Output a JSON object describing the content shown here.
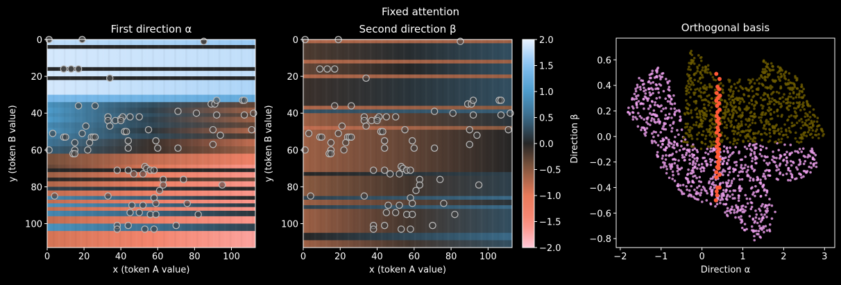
{
  "figure_title": "Fixed attention",
  "colors": {
    "background": "#000000",
    "pink_points": "#f4a4f4",
    "olive_points": "#6e5c00",
    "orange_points": "#ff5a36",
    "circle_edge": "#b8b8b8"
  },
  "colormap": {
    "stops": [
      [
        -2,
        "#ffc8d8"
      ],
      [
        -1.5,
        "#fa8a78"
      ],
      [
        -1,
        "#e87a5a"
      ],
      [
        -0.5,
        "#8a5a40"
      ],
      [
        0,
        "#262626"
      ],
      [
        0.5,
        "#3a6a88"
      ],
      [
        1,
        "#4d9ccc"
      ],
      [
        1.5,
        "#84c0f2"
      ],
      [
        2,
        "#e8f2ff"
      ]
    ],
    "range": [
      -2,
      2
    ],
    "ticks": [
      "2.0",
      "1.5",
      "1.0",
      "0.5",
      "0.0",
      "−0.5",
      "−1.0",
      "−1.5",
      "−2.0"
    ]
  },
  "chart_data": [
    {
      "type": "heatmap",
      "title": "First direction α",
      "xlabel": "x (token A value)",
      "ylabel": "y (token B value)",
      "xlim": [
        0,
        113
      ],
      "ylim": [
        113,
        0
      ],
      "xticks": [
        "0",
        "20",
        "40",
        "60",
        "80",
        "100"
      ],
      "yticks": [
        "0",
        "20",
        "40",
        "60",
        "80",
        "100"
      ],
      "bands": [
        [
          0,
          3,
          1.8,
          1.6
        ],
        [
          3,
          5,
          0,
          0
        ],
        [
          5,
          15,
          1.9,
          1.8
        ],
        [
          15,
          17,
          0,
          0
        ],
        [
          17,
          20,
          1.9,
          1.8
        ],
        [
          20,
          22,
          0,
          0
        ],
        [
          22,
          30,
          1.9,
          1.7
        ],
        [
          30,
          34,
          1.4,
          1.2
        ],
        [
          34,
          37,
          0.9,
          -0.3
        ],
        [
          37,
          40,
          1.0,
          -0.6
        ],
        [
          40,
          42,
          0.9,
          -0.3
        ],
        [
          42,
          45,
          1.0,
          -0.6
        ],
        [
          45,
          48,
          0.8,
          -0.3
        ],
        [
          48,
          51,
          0.9,
          -0.7
        ],
        [
          51,
          54,
          0.7,
          -0.2
        ],
        [
          54,
          58,
          0.6,
          -0.8
        ],
        [
          58,
          62,
          0.4,
          -0.6
        ],
        [
          62,
          68,
          -0.4,
          -1.2
        ],
        [
          68,
          70,
          -0.3,
          -1.6
        ],
        [
          70,
          72,
          0,
          0
        ],
        [
          72,
          75,
          -0.6,
          -1.6
        ],
        [
          75,
          77,
          0,
          -0.3
        ],
        [
          77,
          80,
          -0.7,
          -1.6
        ],
        [
          80,
          82,
          0.2,
          0
        ],
        [
          82,
          85,
          -0.8,
          -1.6
        ],
        [
          85,
          87,
          0.8,
          0
        ],
        [
          87,
          89,
          -0.8,
          -1.6
        ],
        [
          89,
          91,
          0.9,
          0.1
        ],
        [
          91,
          93,
          -0.8,
          -1.6
        ],
        [
          93,
          96,
          0.8,
          0.1
        ],
        [
          96,
          100,
          -0.8,
          -1.6
        ],
        [
          100,
          104,
          0.9,
          0.2
        ],
        [
          104,
          113,
          -0.9,
          -1.7
        ]
      ]
    },
    {
      "type": "heatmap",
      "title": "Second direction β",
      "xlabel": "x (token A value)",
      "ylabel": "y (token B value)",
      "xlim": [
        0,
        113
      ],
      "ylim": [
        113,
        0
      ],
      "xticks": [
        "0",
        "20",
        "40",
        "60",
        "80",
        "100"
      ],
      "yticks": [
        "0",
        "20",
        "40",
        "60",
        "80",
        "100"
      ],
      "bands": [
        [
          0,
          2,
          -0.7,
          -0.6
        ],
        [
          2,
          11,
          -0.2,
          0.3
        ],
        [
          11,
          13,
          -0.7,
          -0.6
        ],
        [
          13,
          19,
          -0.3,
          0.3
        ],
        [
          19,
          21,
          -0.7,
          -0.6
        ],
        [
          21,
          36,
          -0.1,
          0.3
        ],
        [
          36,
          38,
          -0.7,
          -0.5
        ],
        [
          38,
          40,
          0.3,
          0.4
        ],
        [
          40,
          47,
          -0.6,
          0.1
        ],
        [
          47,
          49,
          -0.8,
          -0.5
        ],
        [
          49,
          72,
          -0.6,
          0
        ],
        [
          72,
          74,
          0,
          0.2
        ],
        [
          74,
          85,
          -0.5,
          0.2
        ],
        [
          85,
          87,
          0.2,
          0.5
        ],
        [
          87,
          90,
          -0.6,
          0.1
        ],
        [
          90,
          92,
          0.2,
          0.5
        ],
        [
          92,
          105,
          -0.6,
          0.3
        ],
        [
          105,
          109,
          0,
          0.5
        ],
        [
          109,
          113,
          -0.6,
          0.3
        ]
      ]
    },
    {
      "type": "scatter",
      "title": "Orthogonal basis",
      "xlabel": "Direction α",
      "ylabel": "Direction β",
      "xlim": [
        -2.1,
        3.25
      ],
      "ylim": [
        -0.87,
        0.77
      ],
      "xticks": [
        -2,
        -1,
        0,
        1,
        2,
        3
      ],
      "xtick_labels": [
        "−2",
        "−1",
        "0",
        "1",
        "2",
        "3"
      ],
      "yticks": [
        0.6,
        0.4,
        0.2,
        0.0,
        -0.2,
        -0.4,
        -0.6,
        -0.8
      ],
      "ytick_labels": [
        "0.6",
        "0.4",
        "0.2",
        "0.0",
        "−0.2",
        "−0.4",
        "−0.6",
        "−0.8"
      ],
      "series": [
        {
          "name": "pink cloud",
          "color": "#f4a4f4",
          "count": 900,
          "region": [
            [
              -1.85,
              0.18
            ],
            [
              -1.6,
              0.45
            ],
            [
              -1.05,
              0.56
            ],
            [
              -0.6,
              0.35
            ],
            [
              -0.45,
              0.0
            ],
            [
              0.0,
              -0.1
            ],
            [
              1.0,
              -0.06
            ],
            [
              2.0,
              -0.05
            ],
            [
              2.8,
              -0.1
            ],
            [
              2.85,
              -0.25
            ],
            [
              2.3,
              -0.35
            ],
            [
              1.5,
              -0.35
            ],
            [
              1.8,
              -0.55
            ],
            [
              1.8,
              -0.72
            ],
            [
              1.3,
              -0.82
            ],
            [
              0.9,
              -0.7
            ],
            [
              0.3,
              -0.55
            ],
            [
              -0.5,
              -0.45
            ],
            [
              -1.0,
              -0.25
            ],
            [
              -1.4,
              0.0
            ]
          ]
        },
        {
          "name": "olive cloud",
          "color": "#6e5c00",
          "count": 900,
          "region": [
            [
              -0.45,
              0.2
            ],
            [
              -0.3,
              0.7
            ],
            [
              0.1,
              0.6
            ],
            [
              0.3,
              0.45
            ],
            [
              1.4,
              0.45
            ],
            [
              1.5,
              0.6
            ],
            [
              1.9,
              0.55
            ],
            [
              2.4,
              0.45
            ],
            [
              2.9,
              0.1
            ],
            [
              3.05,
              0.0
            ],
            [
              2.4,
              -0.05
            ],
            [
              1.0,
              -0.05
            ],
            [
              0.5,
              -0.08
            ],
            [
              -0.1,
              -0.1
            ],
            [
              -0.45,
              -0.05
            ]
          ]
        },
        {
          "name": "orange line",
          "color": "#ff5a36",
          "points": [
            [
              0.35,
              0.49
            ],
            [
              0.43,
              0.45
            ],
            [
              0.38,
              0.39
            ],
            [
              0.42,
              0.37
            ],
            [
              0.36,
              0.34
            ],
            [
              0.44,
              0.32
            ],
            [
              0.39,
              0.3
            ],
            [
              0.35,
              0.28
            ],
            [
              0.42,
              0.26
            ],
            [
              0.37,
              0.24
            ],
            [
              0.43,
              0.21
            ],
            [
              0.38,
              0.19
            ],
            [
              0.36,
              0.16
            ],
            [
              0.41,
              0.14
            ],
            [
              0.37,
              0.12
            ],
            [
              0.42,
              0.1
            ],
            [
              0.38,
              0.07
            ],
            [
              0.4,
              0.05
            ],
            [
              0.36,
              0.03
            ],
            [
              0.43,
              0.01
            ],
            [
              0.39,
              -0.02
            ],
            [
              0.37,
              -0.04
            ],
            [
              0.41,
              -0.06
            ],
            [
              0.36,
              -0.08
            ],
            [
              0.42,
              -0.1
            ],
            [
              0.38,
              -0.12
            ],
            [
              0.4,
              -0.14
            ],
            [
              0.37,
              -0.16
            ],
            [
              0.43,
              -0.18
            ],
            [
              0.39,
              -0.2
            ],
            [
              0.41,
              -0.22
            ],
            [
              0.37,
              -0.24
            ],
            [
              0.4,
              -0.25
            ],
            [
              0.35,
              -0.28
            ],
            [
              0.43,
              -0.3
            ],
            [
              0.35,
              -0.32
            ],
            [
              0.38,
              -0.4
            ],
            [
              0.43,
              -0.4
            ],
            [
              0.36,
              -0.43
            ],
            [
              0.37,
              -0.46
            ],
            [
              0.34,
              -0.5
            ]
          ]
        }
      ]
    }
  ],
  "circle_points": [
    [
      1,
      0
    ],
    [
      19,
      0
    ],
    [
      85,
      1
    ],
    [
      9,
      16
    ],
    [
      13,
      16
    ],
    [
      17,
      16
    ],
    [
      34,
      21
    ],
    [
      17,
      36
    ],
    [
      26,
      36
    ],
    [
      89,
      35
    ],
    [
      91,
      35
    ],
    [
      92,
      33
    ],
    [
      106,
      33
    ],
    [
      107,
      33
    ],
    [
      71,
      39
    ],
    [
      81,
      40
    ],
    [
      112,
      40
    ],
    [
      107,
      41
    ],
    [
      92,
      41
    ],
    [
      33,
      42
    ],
    [
      33,
      44
    ],
    [
      34,
      47
    ],
    [
      37,
      44
    ],
    [
      40,
      43
    ],
    [
      41,
      42
    ],
    [
      40,
      44
    ],
    [
      45,
      42
    ],
    [
      50,
      42
    ],
    [
      21,
      47
    ],
    [
      3,
      51
    ],
    [
      19,
      51
    ],
    [
      42,
      50
    ],
    [
      43,
      50
    ],
    [
      55,
      49
    ],
    [
      90,
      49
    ],
    [
      94,
      52
    ],
    [
      111,
      49
    ],
    [
      9,
      53
    ],
    [
      10,
      53
    ],
    [
      24,
      53
    ],
    [
      25,
      53
    ],
    [
      26,
      53
    ],
    [
      15,
      56
    ],
    [
      23,
      56
    ],
    [
      44,
      55
    ],
    [
      59,
      55
    ],
    [
      90,
      57
    ],
    [
      1,
      60
    ],
    [
      15,
      60
    ],
    [
      22,
      60
    ],
    [
      14,
      62
    ],
    [
      15,
      62
    ],
    [
      44,
      59
    ],
    [
      60,
      59
    ],
    [
      71,
      59
    ],
    [
      38,
      71
    ],
    [
      44,
      71
    ],
    [
      47,
      73
    ],
    [
      52,
      73
    ],
    [
      53,
      69
    ],
    [
      54,
      70
    ],
    [
      56,
      71
    ],
    [
      58,
      71
    ],
    [
      63,
      76
    ],
    [
      74,
      76
    ],
    [
      63,
      79
    ],
    [
      95,
      79
    ],
    [
      61,
      82
    ],
    [
      4,
      85
    ],
    [
      33,
      85
    ],
    [
      58,
      86
    ],
    [
      59,
      89
    ],
    [
      76,
      89
    ],
    [
      46,
      90
    ],
    [
      52,
      90
    ],
    [
      45,
      94
    ],
    [
      50,
      94
    ],
    [
      56,
      95
    ],
    [
      59,
      95
    ],
    [
      82,
      95
    ],
    [
      38,
      101
    ],
    [
      38,
      103
    ],
    [
      44,
      101
    ],
    [
      53,
      103
    ],
    [
      58,
      103
    ],
    [
      70,
      101
    ]
  ]
}
